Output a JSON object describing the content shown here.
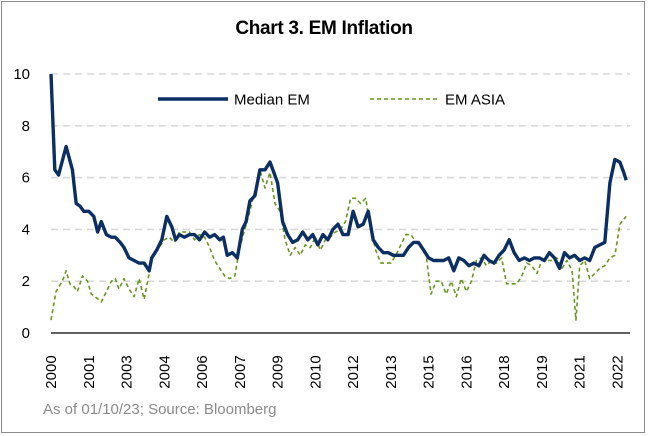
{
  "chart_data": {
    "type": "line",
    "title": "Chart 3. EM Inflation",
    "xlabel": "",
    "ylabel": "",
    "xlim": [
      2000,
      2023
    ],
    "ylim": [
      0,
      10
    ],
    "yticks": [
      0,
      2,
      4,
      6,
      8,
      10
    ],
    "xticks": [
      "2000",
      "2001",
      "2003",
      "2004",
      "2006",
      "2007",
      "2009",
      "2010",
      "2012",
      "2013",
      "2015",
      "2016",
      "2018",
      "2019",
      "2021",
      "2022"
    ],
    "xtick_values": [
      2000,
      2001.5,
      2003,
      2004.5,
      2006,
      2007.5,
      2009,
      2010.5,
      2012,
      2013.5,
      2015,
      2016.5,
      2018,
      2019.5,
      2021,
      2022.5
    ],
    "grid": "horizontal dashed",
    "legend_position": "top-center",
    "series": [
      {
        "name": "Median EM",
        "color": "#0c2f63",
        "style": "solid",
        "x": [
          2000.0,
          2000.15,
          2000.3,
          2000.6,
          2000.85,
          2001.0,
          2001.15,
          2001.3,
          2001.5,
          2001.7,
          2001.85,
          2002.0,
          2002.2,
          2002.4,
          2002.55,
          2002.75,
          2002.9,
          2003.1,
          2003.3,
          2003.5,
          2003.7,
          2003.9,
          2004.0,
          2004.2,
          2004.4,
          2004.6,
          2004.8,
          2004.95,
          2005.1,
          2005.3,
          2005.5,
          2005.7,
          2005.9,
          2006.1,
          2006.3,
          2006.5,
          2006.7,
          2006.85,
          2007.0,
          2007.2,
          2007.4,
          2007.6,
          2007.75,
          2007.9,
          2008.1,
          2008.3,
          2008.5,
          2008.7,
          2008.85,
          2009.0,
          2009.2,
          2009.4,
          2009.6,
          2009.8,
          2010.0,
          2010.2,
          2010.4,
          2010.6,
          2010.8,
          2011.0,
          2011.2,
          2011.4,
          2011.6,
          2011.8,
          2012.0,
          2012.2,
          2012.4,
          2012.6,
          2012.8,
          2013.0,
          2013.2,
          2013.4,
          2013.6,
          2013.8,
          2014.0,
          2014.2,
          2014.4,
          2014.6,
          2014.8,
          2015.0,
          2015.2,
          2015.4,
          2015.6,
          2015.8,
          2016.0,
          2016.2,
          2016.4,
          2016.6,
          2016.8,
          2017.0,
          2017.2,
          2017.4,
          2017.6,
          2017.8,
          2018.0,
          2018.2,
          2018.4,
          2018.6,
          2018.8,
          2019.0,
          2019.2,
          2019.4,
          2019.6,
          2019.8,
          2020.0,
          2020.2,
          2020.4,
          2020.6,
          2020.8,
          2021.0,
          2021.2,
          2021.4,
          2021.6,
          2021.8,
          2022.0,
          2022.2,
          2022.4,
          2022.6,
          2022.75,
          2022.85
        ],
        "values": [
          10.0,
          6.3,
          6.1,
          7.2,
          6.3,
          5.0,
          4.9,
          4.7,
          4.7,
          4.5,
          3.9,
          4.3,
          3.8,
          3.7,
          3.7,
          3.5,
          3.3,
          2.9,
          2.8,
          2.7,
          2.7,
          2.4,
          2.9,
          3.2,
          3.6,
          4.5,
          4.1,
          3.6,
          3.8,
          3.7,
          3.8,
          3.8,
          3.6,
          3.9,
          3.7,
          3.8,
          3.6,
          3.7,
          3.0,
          3.1,
          2.9,
          4.0,
          4.3,
          5.1,
          5.3,
          6.3,
          6.3,
          6.6,
          6.2,
          5.8,
          4.3,
          3.8,
          3.5,
          3.6,
          3.9,
          3.6,
          3.8,
          3.4,
          3.8,
          3.6,
          4.0,
          4.2,
          3.8,
          3.8,
          4.7,
          4.1,
          4.2,
          4.7,
          3.6,
          3.3,
          3.1,
          3.1,
          3.0,
          3.0,
          3.0,
          3.3,
          3.5,
          3.5,
          3.2,
          2.9,
          2.8,
          2.8,
          2.8,
          2.9,
          2.4,
          2.9,
          2.8,
          2.6,
          2.7,
          2.6,
          3.0,
          2.8,
          2.7,
          3.0,
          3.2,
          3.6,
          3.1,
          2.8,
          2.9,
          2.8,
          2.9,
          2.9,
          2.8,
          3.1,
          2.9,
          2.5,
          3.1,
          2.9,
          3.0,
          2.8,
          2.9,
          2.8,
          3.3,
          3.4,
          3.5,
          5.8,
          6.7,
          6.6,
          6.2,
          5.9
        ]
      },
      {
        "name": "EM ASIA",
        "color": "#6a961f",
        "style": "dashed",
        "x": [
          2000.0,
          2000.2,
          2000.45,
          2000.6,
          2000.75,
          2000.9,
          2001.05,
          2001.25,
          2001.45,
          2001.6,
          2001.75,
          2002.0,
          2002.2,
          2002.4,
          2002.55,
          2002.7,
          2002.9,
          2003.1,
          2003.3,
          2003.5,
          2003.7,
          2003.9,
          2004.0,
          2004.15,
          2004.3,
          2004.5,
          2004.7,
          2004.9,
          2005.1,
          2005.3,
          2005.5,
          2005.7,
          2005.9,
          2006.1,
          2006.3,
          2006.5,
          2006.7,
          2006.9,
          2007.1,
          2007.3,
          2007.5,
          2007.7,
          2007.9,
          2008.1,
          2008.3,
          2008.5,
          2008.7,
          2008.9,
          2009.1,
          2009.3,
          2009.5,
          2009.7,
          2009.9,
          2010.1,
          2010.3,
          2010.5,
          2010.7,
          2010.9,
          2011.1,
          2011.3,
          2011.5,
          2011.7,
          2011.9,
          2012.1,
          2012.3,
          2012.5,
          2012.7,
          2012.9,
          2013.1,
          2013.3,
          2013.5,
          2013.7,
          2013.9,
          2014.1,
          2014.3,
          2014.5,
          2014.7,
          2014.9,
          2015.1,
          2015.3,
          2015.5,
          2015.7,
          2015.9,
          2016.1,
          2016.3,
          2016.5,
          2016.7,
          2016.9,
          2017.1,
          2017.3,
          2017.5,
          2017.7,
          2017.9,
          2018.1,
          2018.3,
          2018.5,
          2018.7,
          2018.9,
          2019.1,
          2019.3,
          2019.5,
          2019.7,
          2019.9,
          2020.1,
          2020.3,
          2020.5,
          2020.7,
          2020.85,
          2021.0,
          2021.2,
          2021.4,
          2021.6,
          2021.8,
          2022.0,
          2022.2,
          2022.4,
          2022.6,
          2022.85
        ],
        "values": [
          0.5,
          1.6,
          2.0,
          2.4,
          1.9,
          1.8,
          1.6,
          2.2,
          2.0,
          1.5,
          1.4,
          1.2,
          1.6,
          2.0,
          2.1,
          1.7,
          2.1,
          1.7,
          1.4,
          2.1,
          1.3,
          2.3,
          2.9,
          3.1,
          3.3,
          3.6,
          3.7,
          3.5,
          3.9,
          3.9,
          3.9,
          3.6,
          3.8,
          3.7,
          3.3,
          2.8,
          2.5,
          2.2,
          2.1,
          2.2,
          3.3,
          4.0,
          4.7,
          5.5,
          6.3,
          5.6,
          6.2,
          5.0,
          4.7,
          3.6,
          3.0,
          3.3,
          3.0,
          3.4,
          3.3,
          3.7,
          3.2,
          3.6,
          3.7,
          3.9,
          4.0,
          4.3,
          5.2,
          5.2,
          5.0,
          5.2,
          4.0,
          3.2,
          2.7,
          2.7,
          2.7,
          3.0,
          3.4,
          3.8,
          3.8,
          3.5,
          3.3,
          3.0,
          1.5,
          2.0,
          2.0,
          1.5,
          2.0,
          1.4,
          2.1,
          1.6,
          2.0,
          2.8,
          2.9,
          2.6,
          2.8,
          2.7,
          2.9,
          1.9,
          1.9,
          1.9,
          2.2,
          2.7,
          2.6,
          2.3,
          2.8,
          2.8,
          2.8,
          2.9,
          2.5,
          2.8,
          2.4,
          0.5,
          2.6,
          2.8,
          2.1,
          2.3,
          2.5,
          2.6,
          2.9,
          3.0,
          4.2,
          4.5
        ]
      }
    ],
    "source_note": "As of 01/10/23; Source: Bloomberg"
  }
}
